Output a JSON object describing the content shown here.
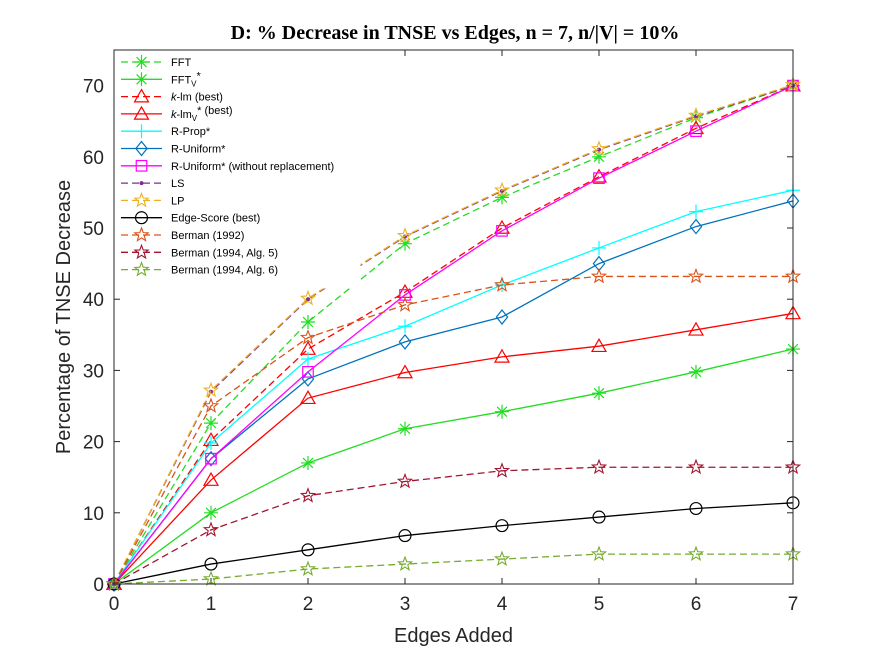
{
  "chart_data": {
    "type": "line",
    "title": "D: % Decrease in TNSE vs Edges, n = 7, n/|V| = 10%",
    "xlabel": "Edges Added",
    "ylabel": "Percentage of TNSE Decrease",
    "xlim": [
      0,
      7
    ],
    "ylim": [
      0,
      75
    ],
    "xticks": [
      "0",
      "1",
      "2",
      "3",
      "4",
      "5",
      "6",
      "7"
    ],
    "yticks": [
      "0",
      "10",
      "20",
      "30",
      "40",
      "50",
      "60",
      "70"
    ],
    "legend_position": "top-left",
    "x": [
      0,
      1,
      2,
      3,
      4,
      5,
      6,
      7
    ],
    "series": [
      {
        "name": "FFT",
        "legend_parts": [
          "FFT"
        ],
        "color": "#22dd22",
        "dash": true,
        "marker": "asterisk",
        "values": [
          0,
          22.6,
          36.8,
          47.8,
          54.3,
          60.0,
          65.5,
          70.0
        ]
      },
      {
        "name": "FFT_V*",
        "legend_parts": [
          "FFT",
          "V",
          "*"
        ],
        "color": "#22dd22",
        "dash": false,
        "marker": "asterisk",
        "values": [
          0,
          10.0,
          17.0,
          21.8,
          24.2,
          26.8,
          29.8,
          33.0
        ]
      },
      {
        "name": "k-lm (best)",
        "legend_parts": [
          "k",
          "-lm (best)"
        ],
        "color": "#ff0000",
        "dash": true,
        "marker": "triangle",
        "values": [
          0,
          20.2,
          33.0,
          41.0,
          50.0,
          57.2,
          64.0,
          70.0
        ]
      },
      {
        "name": "k-lm_V* (best)",
        "legend_parts": [
          "k",
          "-lm",
          "V",
          "* (best)"
        ],
        "color": "#ff0000",
        "dash": false,
        "marker": "triangle",
        "values": [
          0,
          14.6,
          26.1,
          29.7,
          31.9,
          33.4,
          35.7,
          38.0
        ]
      },
      {
        "name": "R-Prop*",
        "legend_parts": [
          "R-Prop*"
        ],
        "color": "#00ffff",
        "dash": false,
        "marker": "plus",
        "values": [
          0,
          19.8,
          31.6,
          36.2,
          42.0,
          47.2,
          52.3,
          55.3
        ]
      },
      {
        "name": "R-Uniform*",
        "legend_parts": [
          "R-Uniform*"
        ],
        "color": "#0072bd",
        "dash": false,
        "marker": "diamond",
        "values": [
          0,
          17.6,
          28.8,
          34.0,
          37.5,
          45.0,
          50.2,
          53.8
        ]
      },
      {
        "name": "R-Uniform* (without replacement)",
        "legend_parts": [
          "R-Uniform* (without replacement)"
        ],
        "color": "#ff00ff",
        "dash": false,
        "marker": "square",
        "values": [
          0,
          17.6,
          29.8,
          40.6,
          49.6,
          57.0,
          63.6,
          70.0
        ]
      },
      {
        "name": "LS",
        "legend_parts": [
          "LS"
        ],
        "color": "#7e2f8e",
        "dash": true,
        "marker": "dot",
        "values": [
          0,
          27.0,
          40.0,
          48.8,
          55.2,
          61.0,
          65.7,
          70.0
        ]
      },
      {
        "name": "LP",
        "legend_parts": [
          "LP"
        ],
        "color": "#edb120",
        "dash": true,
        "marker": "star",
        "values": [
          0,
          27.2,
          40.1,
          48.9,
          55.3,
          61.1,
          65.8,
          70.1
        ]
      },
      {
        "name": "Edge-Score (best)",
        "legend_parts": [
          "Edge-Score (best)"
        ],
        "color": "#000000",
        "dash": false,
        "marker": "circle",
        "values": [
          0,
          2.8,
          4.8,
          6.8,
          8.2,
          9.4,
          10.6,
          11.4
        ]
      },
      {
        "name": "Berman (1992)",
        "legend_parts": [
          "Berman (1992)"
        ],
        "color": "#d95319",
        "dash": true,
        "marker": "star",
        "values": [
          0,
          25.0,
          34.6,
          39.2,
          42.0,
          43.2,
          43.2,
          43.2
        ]
      },
      {
        "name": "Berman (1994, Alg. 5)",
        "legend_parts": [
          "Berman (1994, Alg. 5)"
        ],
        "color": "#a2142f",
        "dash": true,
        "marker": "star",
        "values": [
          0,
          7.6,
          12.4,
          14.4,
          15.9,
          16.4,
          16.4,
          16.4
        ]
      },
      {
        "name": "Berman (1994, Alg. 6)",
        "legend_parts": [
          "Berman (1994, Alg. 6)"
        ],
        "color": "#77ac30",
        "dash": true,
        "marker": "star",
        "values": [
          0,
          0.7,
          2.1,
          2.8,
          3.5,
          4.2,
          4.2,
          4.2
        ]
      }
    ]
  }
}
